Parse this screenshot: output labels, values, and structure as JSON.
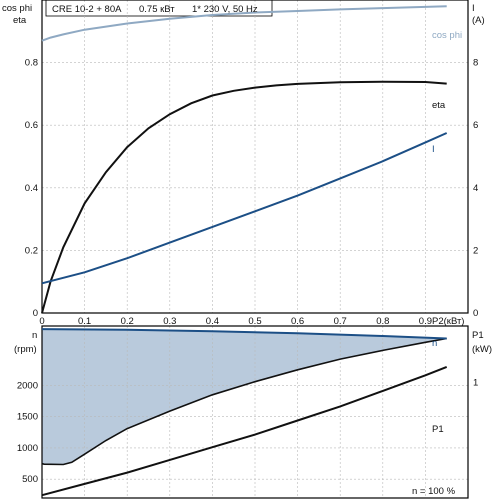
{
  "header": {
    "model": "CRE 10-2 + 80A",
    "power": "0.75 кВт",
    "supply": "1* 230 V, 50 Hz"
  },
  "chart_data": [
    {
      "type": "line",
      "grid": true,
      "x_axis": {
        "label": "P2(кВт)",
        "range": [
          0,
          1.0
        ],
        "ticks": [
          "0",
          "0.1",
          "0.2",
          "0.3",
          "0.4",
          "0.5",
          "0.6",
          "0.7",
          "0.8",
          "0.9"
        ],
        "tick_values": [
          0,
          0.1,
          0.2,
          0.3,
          0.4,
          0.5,
          0.6,
          0.7,
          0.8,
          0.9
        ]
      },
      "y_left": {
        "labels": [
          "cos phi",
          "eta"
        ],
        "range": [
          0,
          1.0
        ],
        "ticks": [
          "0",
          "0.2",
          "0.4",
          "0.6",
          "0.8"
        ],
        "tick_values": [
          0,
          0.2,
          0.4,
          0.6,
          0.8
        ]
      },
      "y_right": {
        "labels": [
          "I",
          "(A)"
        ],
        "range": [
          0,
          10
        ],
        "ticks": [
          "0",
          "2",
          "4",
          "6",
          "8"
        ],
        "tick_values": [
          0,
          2,
          4,
          6,
          8
        ]
      },
      "series": [
        {
          "name": "cos phi",
          "axis": "left",
          "color": "#8fa9c3",
          "x": [
            0,
            0.02,
            0.05,
            0.1,
            0.15,
            0.2,
            0.3,
            0.4,
            0.5,
            0.6,
            0.7,
            0.8,
            0.9,
            0.95
          ],
          "y": [
            0.87,
            0.88,
            0.89,
            0.905,
            0.915,
            0.925,
            0.94,
            0.952,
            0.96,
            0.965,
            0.97,
            0.974,
            0.978,
            0.98
          ]
        },
        {
          "name": "eta",
          "axis": "left",
          "color": "#111111",
          "x": [
            0,
            0.02,
            0.05,
            0.1,
            0.15,
            0.2,
            0.25,
            0.3,
            0.35,
            0.4,
            0.45,
            0.5,
            0.55,
            0.6,
            0.7,
            0.8,
            0.9,
            0.95
          ],
          "y": [
            0.0,
            0.1,
            0.21,
            0.35,
            0.45,
            0.53,
            0.59,
            0.635,
            0.67,
            0.695,
            0.71,
            0.72,
            0.727,
            0.732,
            0.737,
            0.739,
            0.738,
            0.733
          ]
        },
        {
          "name": "I",
          "axis": "right",
          "color": "#1c4f86",
          "x": [
            0,
            0.1,
            0.2,
            0.3,
            0.4,
            0.5,
            0.6,
            0.7,
            0.8,
            0.9,
            0.95
          ],
          "y": [
            0.95,
            1.3,
            1.75,
            2.25,
            2.75,
            3.25,
            3.75,
            4.3,
            4.85,
            5.45,
            5.75
          ]
        }
      ]
    },
    {
      "type": "area",
      "grid": true,
      "x_axis": {
        "range": [
          0,
          1.0
        ]
      },
      "y_left": {
        "labels": [
          "n",
          "(rpm)"
        ],
        "range": [
          200,
          2950
        ],
        "ticks": [
          "500",
          "1000",
          "1500",
          "2000"
        ],
        "tick_values": [
          500,
          1000,
          1500,
          2000
        ]
      },
      "y_right": {
        "labels": [
          "P1",
          "(kW)"
        ],
        "range": [
          0.18,
          1.4
        ],
        "ticks": [
          "1"
        ],
        "tick_values": [
          1
        ]
      },
      "area_fill": "#b9cadc",
      "series": [
        {
          "name": "n",
          "axis": "left",
          "color": "#1c4f86",
          "x": [
            0,
            0.2,
            0.4,
            0.6,
            0.8,
            0.95
          ],
          "y": [
            2900,
            2890,
            2865,
            2835,
            2790,
            2750
          ]
        },
        {
          "name": "n (lower boundary)",
          "axis": "left",
          "color": "#111111",
          "x": [
            0,
            0.005,
            0.05,
            0.07,
            0.1,
            0.15,
            0.2,
            0.3,
            0.4,
            0.5,
            0.6,
            0.7,
            0.8,
            0.9,
            0.95
          ],
          "y": [
            750,
            740,
            735,
            770,
            900,
            1120,
            1310,
            1590,
            1850,
            2060,
            2250,
            2420,
            2560,
            2690,
            2750
          ]
        },
        {
          "name": "P1",
          "axis": "right",
          "color": "#111111",
          "x": [
            0,
            0.1,
            0.2,
            0.3,
            0.4,
            0.5,
            0.6,
            0.7,
            0.8,
            0.9,
            0.95
          ],
          "y": [
            0.2,
            0.28,
            0.36,
            0.45,
            0.54,
            0.63,
            0.73,
            0.83,
            0.94,
            1.05,
            1.11
          ]
        }
      ],
      "annotations": {
        "n_label": "n",
        "p1_label": "P1",
        "footer": "n = 100 %"
      }
    }
  ]
}
